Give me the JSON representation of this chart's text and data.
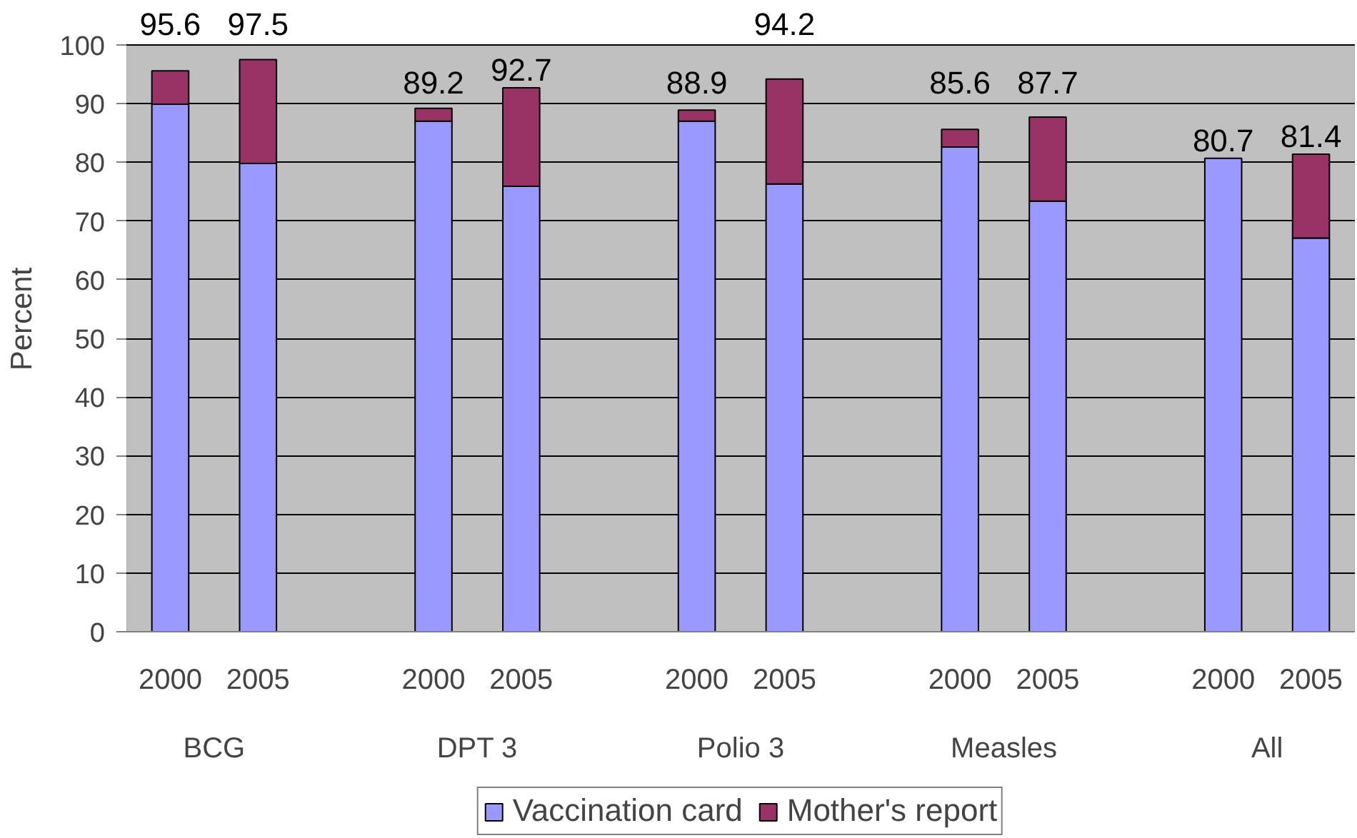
{
  "chart_data": {
    "type": "bar",
    "stacked": true,
    "ylabel": "Percent",
    "categories": [
      "2000",
      "2005",
      null,
      "2000",
      "2005",
      null,
      "2000",
      "2005",
      null,
      "2000",
      "2005",
      null,
      "2000",
      "2005"
    ],
    "annotations": [
      "BCG",
      "DPT 3",
      "Polio 3",
      "Measles",
      "All"
    ],
    "series": [
      {
        "name": "Vaccination card",
        "color": "#9999ff",
        "values": [
          89.9,
          79.8,
          null,
          87.0,
          75.9,
          null,
          87.0,
          76.3,
          null,
          82.6,
          73.4,
          null,
          80.7,
          67.1
        ]
      },
      {
        "name": "Mother's report",
        "color": "#993366",
        "values": [
          5.7,
          17.7,
          null,
          2.2,
          16.8,
          null,
          1.9,
          17.9,
          null,
          3.0,
          14.3,
          null,
          null,
          14.3
        ]
      }
    ],
    "totals": [
      "95.6",
      "97.5",
      null,
      "89.2",
      "92.7",
      null,
      "88.9",
      "94.2",
      null,
      "85.6",
      "87.7",
      null,
      "80.7",
      "81.4"
    ],
    "ylim": [
      0,
      100
    ],
    "yticks": [
      0,
      10,
      20,
      30,
      40,
      50,
      60,
      70,
      80,
      90,
      100
    ],
    "grid": "y",
    "legend": "bottom"
  }
}
